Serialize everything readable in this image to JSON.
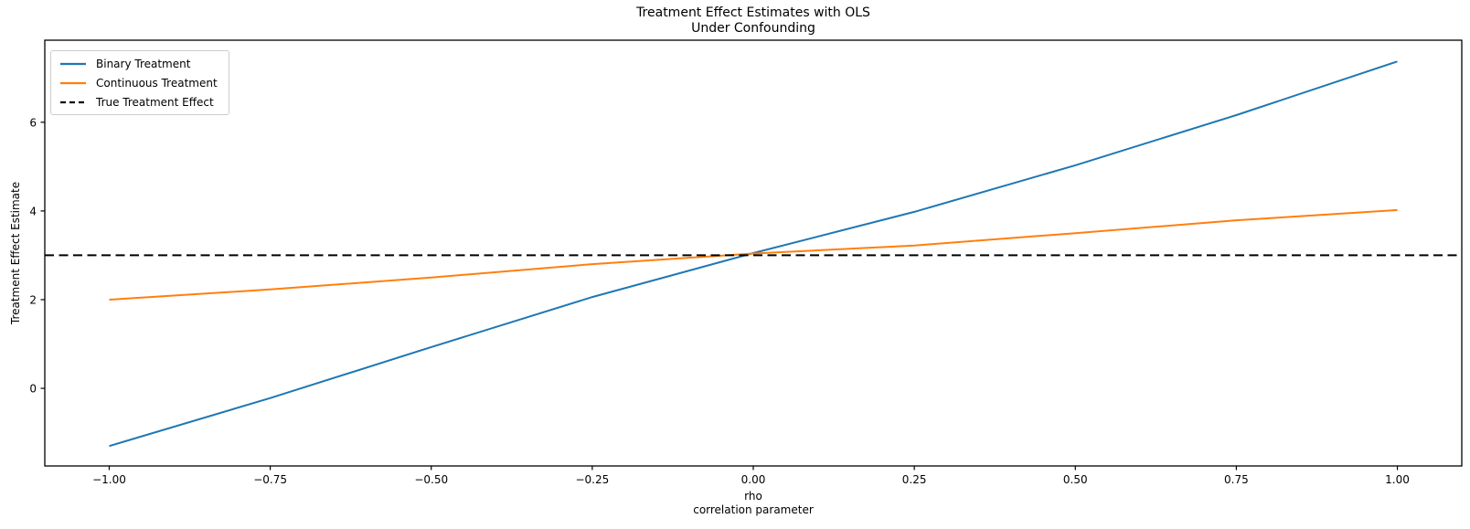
{
  "chart_data": {
    "type": "line",
    "title": "Treatment Effect Estimates with OLS\nUnder Confounding",
    "title_lines": [
      "Treatment Effect Estimates with OLS",
      "Under Confounding"
    ],
    "xlabel": "rho\ncorrelation parameter",
    "xlabel_lines": [
      "rho",
      "correlation parameter"
    ],
    "ylabel": "Treatment Effect Estimate",
    "x": [
      -1.0,
      -0.75,
      -0.5,
      -0.25,
      0.0,
      0.25,
      0.5,
      0.75,
      1.0
    ],
    "series": [
      {
        "name": "Binary Treatment",
        "color": "#1f77b4",
        "style": "solid",
        "values": [
          -1.3,
          -0.22,
          0.93,
          2.06,
          3.05,
          3.98,
          5.03,
          6.16,
          7.37
        ]
      },
      {
        "name": "Continuous Treatment",
        "color": "#ff7f0e",
        "style": "solid",
        "values": [
          2.0,
          2.23,
          2.5,
          2.8,
          3.04,
          3.22,
          3.5,
          3.79,
          4.02
        ]
      },
      {
        "name": "True Treatment Effect",
        "color": "#000000",
        "style": "dashed",
        "constant": 3.0
      }
    ],
    "xlim": [
      -1.1,
      1.1
    ],
    "ylim": [
      -1.75,
      7.85
    ],
    "xticks": {
      "values": [
        -1.0,
        -0.75,
        -0.5,
        -0.25,
        0.0,
        0.25,
        0.5,
        0.75,
        1.0
      ],
      "labels": [
        "−1.00",
        "−0.75",
        "−0.50",
        "−0.25",
        "0.00",
        "0.25",
        "0.50",
        "0.75",
        "1.00"
      ]
    },
    "yticks": {
      "values": [
        0,
        2,
        4,
        6
      ],
      "labels": [
        "0",
        "2",
        "4",
        "6"
      ]
    },
    "grid": false,
    "legend_position": "upper left",
    "background": "#ffffff",
    "spine_color": "#000000"
  }
}
